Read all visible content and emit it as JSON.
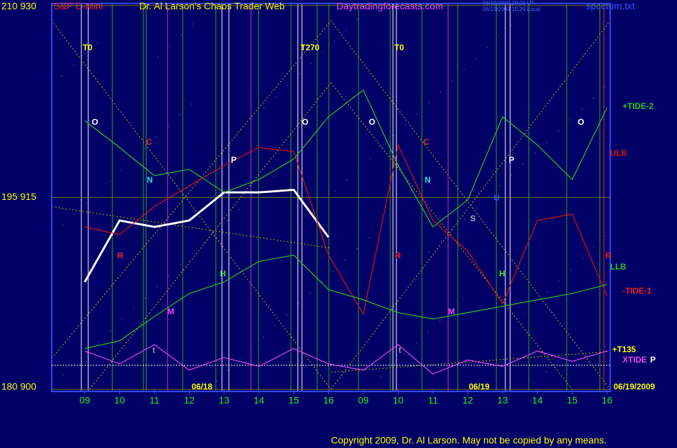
{
  "header": {
    "symbol": "S&P E-Mini",
    "title": "Dr. Al Larson's Chaos Trader Web",
    "site": "Daytradingforecasts.com",
    "time_ut": "06/19/2009 20:29 UT",
    "time_local": "06/19/2009 15:29 Local",
    "file": "spcctom.txt"
  },
  "footer": {
    "copyright": "Copyright 2009, Dr. Al Larson. May not be copied by any means."
  },
  "chart_data": {
    "type": "line",
    "categories": [
      "09",
      "10",
      "11",
      "12",
      "13",
      "14",
      "15",
      "16",
      "09",
      "10",
      "11",
      "12",
      "13",
      "14",
      "15",
      "16"
    ],
    "ylim": [
      900,
      930
    ],
    "yticks": [
      {
        "value": 930,
        "label": "210  930"
      },
      {
        "value": 915,
        "label": "195  915"
      },
      {
        "value": 900,
        "label": "180  900"
      }
    ],
    "series": [
      {
        "color": "#ffffff",
        "values": [
          908.4,
          913.2,
          912.7,
          913.2,
          915.4,
          915.4,
          915.6,
          911.9,
          null,
          null,
          null,
          null,
          null,
          null,
          null,
          null
        ]
      },
      {
        "name": "+TIDE-2",
        "color": "#22cc22",
        "values": [
          921,
          918.9,
          916.7,
          917.2,
          915.4,
          916.4,
          918,
          921.3,
          923.4,
          917.5,
          912.7,
          914.8,
          921.3,
          919.1,
          916.4,
          922
        ]
      },
      {
        "name": "ULB",
        "color": "#dd1111",
        "values": [
          912.7,
          912.1,
          914.3,
          915.9,
          917.5,
          918.9,
          918.6,
          910.5,
          905.9,
          919.1,
          913.2,
          910.8,
          906.7,
          913.2,
          913.7,
          907.3
        ]
      },
      {
        "name": "LLB",
        "color": "#22cc22",
        "values": [
          903.2,
          903.8,
          905.7,
          907.5,
          908.4,
          910,
          910.5,
          907.8,
          907,
          906,
          905.5,
          906,
          906.5,
          907,
          907.5,
          908.2
        ]
      },
      {
        "name": "XTIDE",
        "color": "#ee44ee",
        "values": [
          903,
          902,
          903.5,
          901.5,
          902.5,
          901.8,
          903.2,
          902,
          901.5,
          903.5,
          901.2,
          902.3,
          901.8,
          903,
          902.2,
          903
        ]
      }
    ],
    "annotations": [
      "T0",
      "T270",
      "T0",
      "O",
      "O",
      "O",
      "O",
      "C",
      "C",
      "N",
      "N",
      "P",
      "P",
      "R",
      "R",
      "R",
      "H",
      "H",
      "M",
      "M",
      "t",
      "t",
      "S",
      "U",
      "06/18",
      "06/19",
      "06/19/2009",
      "-TIDE-1",
      "+T135",
      "P"
    ]
  }
}
